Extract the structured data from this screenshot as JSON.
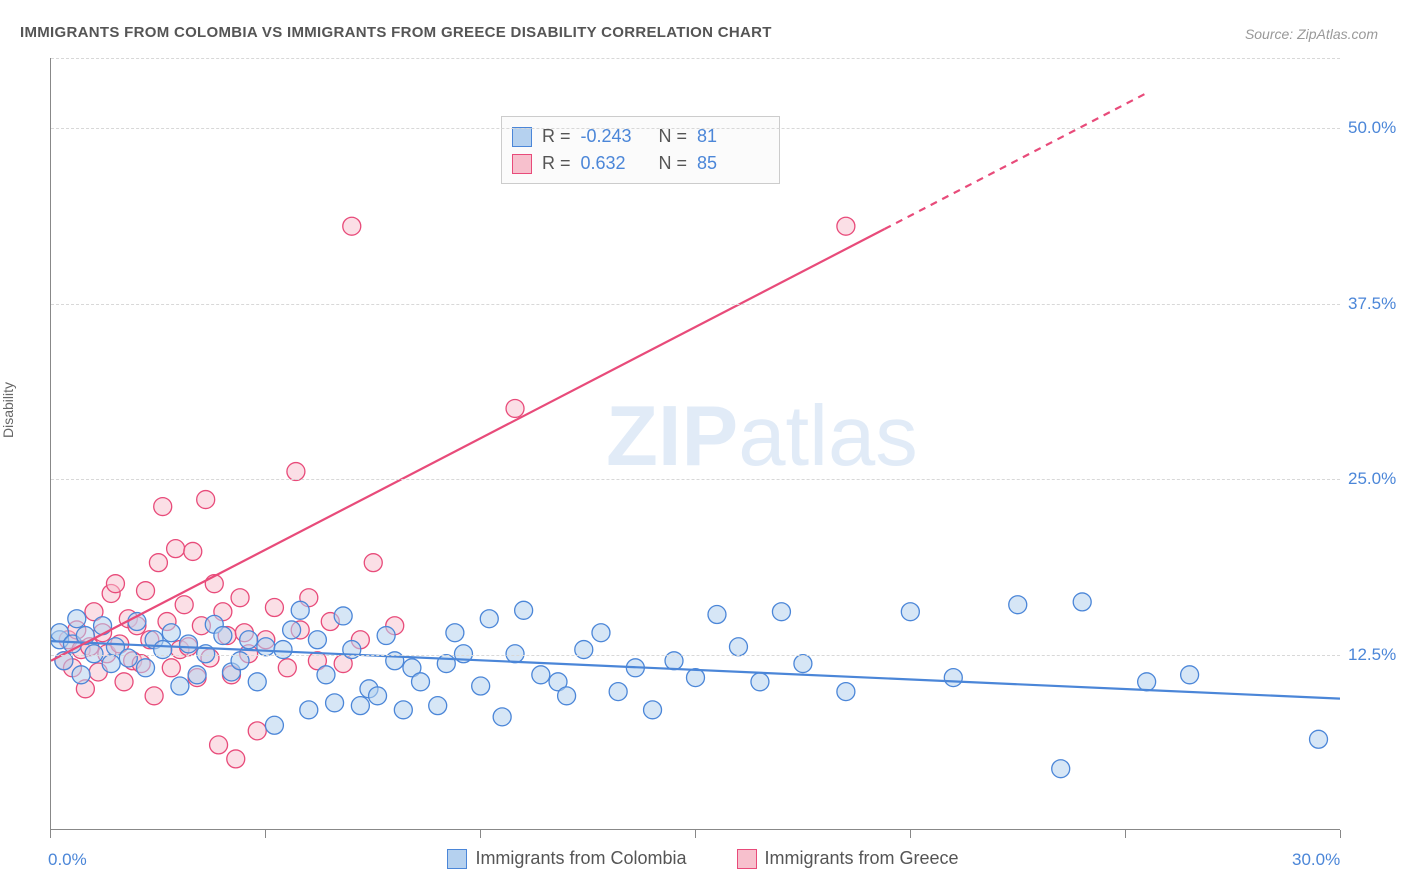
{
  "title": "IMMIGRANTS FROM COLOMBIA VS IMMIGRANTS FROM GREECE DISABILITY CORRELATION CHART",
  "source": "Source: ZipAtlas.com",
  "ylabel": "Disability",
  "watermark": {
    "bold": "ZIP",
    "light": "atlas"
  },
  "chart": {
    "type": "scatter",
    "xlim": [
      0,
      30
    ],
    "ylim": [
      0,
      55
    ],
    "x_ticks": [
      0,
      5,
      10,
      15,
      20,
      25,
      30
    ],
    "x_tick_labels": [
      "0.0%",
      "",
      "",
      "",
      "",
      "",
      "30.0%"
    ],
    "y_gridlines": [
      12.5,
      25.0,
      37.5,
      50.0,
      55.0
    ],
    "y_tick_labels": [
      "12.5%",
      "25.0%",
      "37.5%",
      "50.0%",
      ""
    ],
    "background_color": "#ffffff",
    "grid_color": "#d8d8d8",
    "axis_color": "#888888",
    "marker_radius": 9,
    "marker_stroke_width": 1.3,
    "line_width": 2.2
  },
  "series": {
    "colombia": {
      "label": "Immigrants from Colombia",
      "fill": "#b5d1ef",
      "stroke": "#4b86d8",
      "fill_opacity": 0.55,
      "R": "-0.243",
      "N": "81",
      "trend": {
        "x1": 0,
        "y1": 13.4,
        "x2": 30,
        "y2": 9.3,
        "dashed": false
      },
      "points": [
        [
          0.2,
          13.5
        ],
        [
          0.2,
          14.0
        ],
        [
          0.3,
          12.0
        ],
        [
          0.5,
          13.2
        ],
        [
          0.6,
          15.0
        ],
        [
          0.7,
          11.0
        ],
        [
          0.8,
          13.8
        ],
        [
          1.0,
          12.5
        ],
        [
          1.2,
          14.5
        ],
        [
          1.4,
          11.8
        ],
        [
          1.5,
          13.0
        ],
        [
          1.8,
          12.2
        ],
        [
          2.0,
          14.8
        ],
        [
          2.2,
          11.5
        ],
        [
          2.4,
          13.5
        ],
        [
          2.6,
          12.8
        ],
        [
          2.8,
          14.0
        ],
        [
          3.0,
          10.2
        ],
        [
          3.2,
          13.2
        ],
        [
          3.4,
          11.0
        ],
        [
          3.6,
          12.5
        ],
        [
          3.8,
          14.6
        ],
        [
          4.0,
          13.8
        ],
        [
          4.2,
          11.2
        ],
        [
          4.4,
          12.0
        ],
        [
          4.6,
          13.5
        ],
        [
          4.8,
          10.5
        ],
        [
          5.0,
          13.0
        ],
        [
          5.2,
          7.4
        ],
        [
          5.4,
          12.8
        ],
        [
          5.6,
          14.2
        ],
        [
          5.8,
          15.6
        ],
        [
          6.0,
          8.5
        ],
        [
          6.2,
          13.5
        ],
        [
          6.4,
          11.0
        ],
        [
          6.6,
          9.0
        ],
        [
          6.8,
          15.2
        ],
        [
          7.0,
          12.8
        ],
        [
          7.2,
          8.8
        ],
        [
          7.4,
          10.0
        ],
        [
          7.6,
          9.5
        ],
        [
          7.8,
          13.8
        ],
        [
          8.0,
          12.0
        ],
        [
          8.2,
          8.5
        ],
        [
          8.4,
          11.5
        ],
        [
          8.6,
          10.5
        ],
        [
          9.0,
          8.8
        ],
        [
          9.2,
          11.8
        ],
        [
          9.4,
          14.0
        ],
        [
          9.6,
          12.5
        ],
        [
          10.0,
          10.2
        ],
        [
          10.2,
          15.0
        ],
        [
          10.5,
          8.0
        ],
        [
          10.8,
          12.5
        ],
        [
          11.0,
          15.6
        ],
        [
          11.4,
          11.0
        ],
        [
          11.8,
          10.5
        ],
        [
          12.0,
          9.5
        ],
        [
          12.4,
          12.8
        ],
        [
          12.8,
          14.0
        ],
        [
          13.2,
          9.8
        ],
        [
          13.6,
          11.5
        ],
        [
          14.0,
          8.5
        ],
        [
          14.5,
          12.0
        ],
        [
          15.0,
          10.8
        ],
        [
          15.5,
          15.3
        ],
        [
          16.0,
          13.0
        ],
        [
          16.5,
          10.5
        ],
        [
          17.0,
          15.5
        ],
        [
          17.5,
          11.8
        ],
        [
          18.5,
          9.8
        ],
        [
          20.0,
          15.5
        ],
        [
          21.0,
          10.8
        ],
        [
          22.5,
          16.0
        ],
        [
          24.0,
          16.2
        ],
        [
          25.5,
          10.5
        ],
        [
          23.5,
          4.3
        ],
        [
          26.5,
          11.0
        ],
        [
          29.5,
          6.4
        ]
      ]
    },
    "greece": {
      "label": "Immigrants from Greece",
      "fill": "#f7c0cd",
      "stroke": "#e84b7a",
      "fill_opacity": 0.5,
      "R": "0.632",
      "N": "85",
      "trend_solid": {
        "x1": 0,
        "y1": 12.0,
        "x2": 19.4,
        "y2": 42.8
      },
      "trend_dashed": {
        "x1": 19.4,
        "y1": 42.8,
        "x2": 25.5,
        "y2": 52.5
      },
      "points": [
        [
          0.3,
          12.0
        ],
        [
          0.4,
          13.5
        ],
        [
          0.5,
          11.5
        ],
        [
          0.6,
          14.2
        ],
        [
          0.7,
          12.8
        ],
        [
          0.8,
          10.0
        ],
        [
          0.9,
          13.0
        ],
        [
          1.0,
          15.5
        ],
        [
          1.1,
          11.2
        ],
        [
          1.2,
          14.0
        ],
        [
          1.3,
          12.5
        ],
        [
          1.4,
          16.8
        ],
        [
          1.5,
          17.5
        ],
        [
          1.6,
          13.2
        ],
        [
          1.7,
          10.5
        ],
        [
          1.8,
          15.0
        ],
        [
          1.9,
          12.0
        ],
        [
          2.0,
          14.5
        ],
        [
          2.1,
          11.8
        ],
        [
          2.2,
          17.0
        ],
        [
          2.3,
          13.5
        ],
        [
          2.4,
          9.5
        ],
        [
          2.5,
          19.0
        ],
        [
          2.6,
          23.0
        ],
        [
          2.7,
          14.8
        ],
        [
          2.8,
          11.5
        ],
        [
          2.9,
          20.0
        ],
        [
          3.0,
          12.8
        ],
        [
          3.1,
          16.0
        ],
        [
          3.2,
          13.0
        ],
        [
          3.3,
          19.8
        ],
        [
          3.4,
          10.8
        ],
        [
          3.5,
          14.5
        ],
        [
          3.6,
          23.5
        ],
        [
          3.7,
          12.2
        ],
        [
          3.8,
          17.5
        ],
        [
          3.9,
          6.0
        ],
        [
          4.0,
          15.5
        ],
        [
          4.1,
          13.8
        ],
        [
          4.2,
          11.0
        ],
        [
          4.3,
          5.0
        ],
        [
          4.4,
          16.5
        ],
        [
          4.5,
          14.0
        ],
        [
          4.6,
          12.5
        ],
        [
          4.8,
          7.0
        ],
        [
          5.0,
          13.5
        ],
        [
          5.2,
          15.8
        ],
        [
          5.5,
          11.5
        ],
        [
          5.7,
          25.5
        ],
        [
          5.8,
          14.2
        ],
        [
          6.0,
          16.5
        ],
        [
          6.2,
          12.0
        ],
        [
          6.5,
          14.8
        ],
        [
          6.8,
          11.8
        ],
        [
          7.0,
          43.0
        ],
        [
          7.2,
          13.5
        ],
        [
          7.5,
          19.0
        ],
        [
          8.0,
          14.5
        ],
        [
          10.8,
          30.0
        ],
        [
          18.5,
          43.0
        ]
      ]
    }
  }
}
